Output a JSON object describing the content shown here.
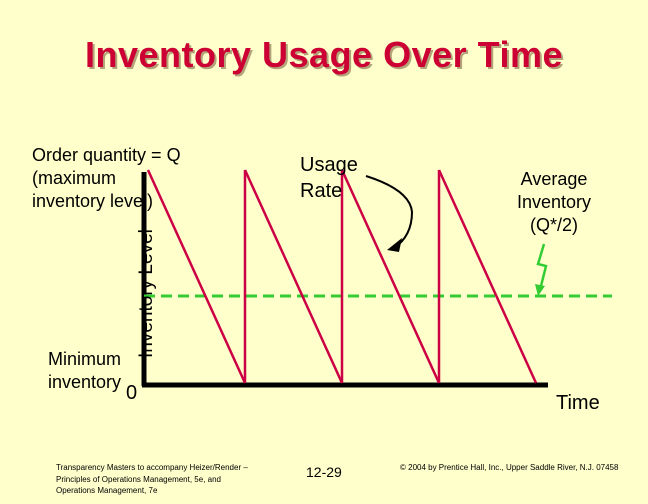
{
  "title": "Inventory Usage Over Time",
  "labels": {
    "order_quantity": "Order quantity = Q (maximum inventory level)",
    "usage_rate": "Usage Rate",
    "average_inventory": "Average Inventory (Q*/2)",
    "minimum_inventory": "Minimum inventory",
    "zero": "0",
    "y_axis": "Inventory Level",
    "x_axis": "Time"
  },
  "footer": {
    "left": "Transparency Masters to accompany Heizer/Render – Principles of Operations Management, 5e, and Operations Management, 7e",
    "page": "12-29",
    "copyright": "© 2004 by Prentice Hall, Inc., Upper Saddle River, N.J. 07458"
  },
  "colors": {
    "background": "#FFFFCC",
    "title": "#CC0033",
    "sawtooth": "#CC0044",
    "average_line": "#33CC33",
    "axes": "#000000"
  },
  "chart_data": {
    "type": "line",
    "series": [
      {
        "x": [
          0,
          1,
          1,
          2,
          2,
          3,
          3,
          4
        ],
        "y": [
          1,
          0,
          1,
          0,
          1,
          0,
          1,
          0
        ]
      }
    ],
    "reference_line": {
      "y": 0.5
    }
  }
}
